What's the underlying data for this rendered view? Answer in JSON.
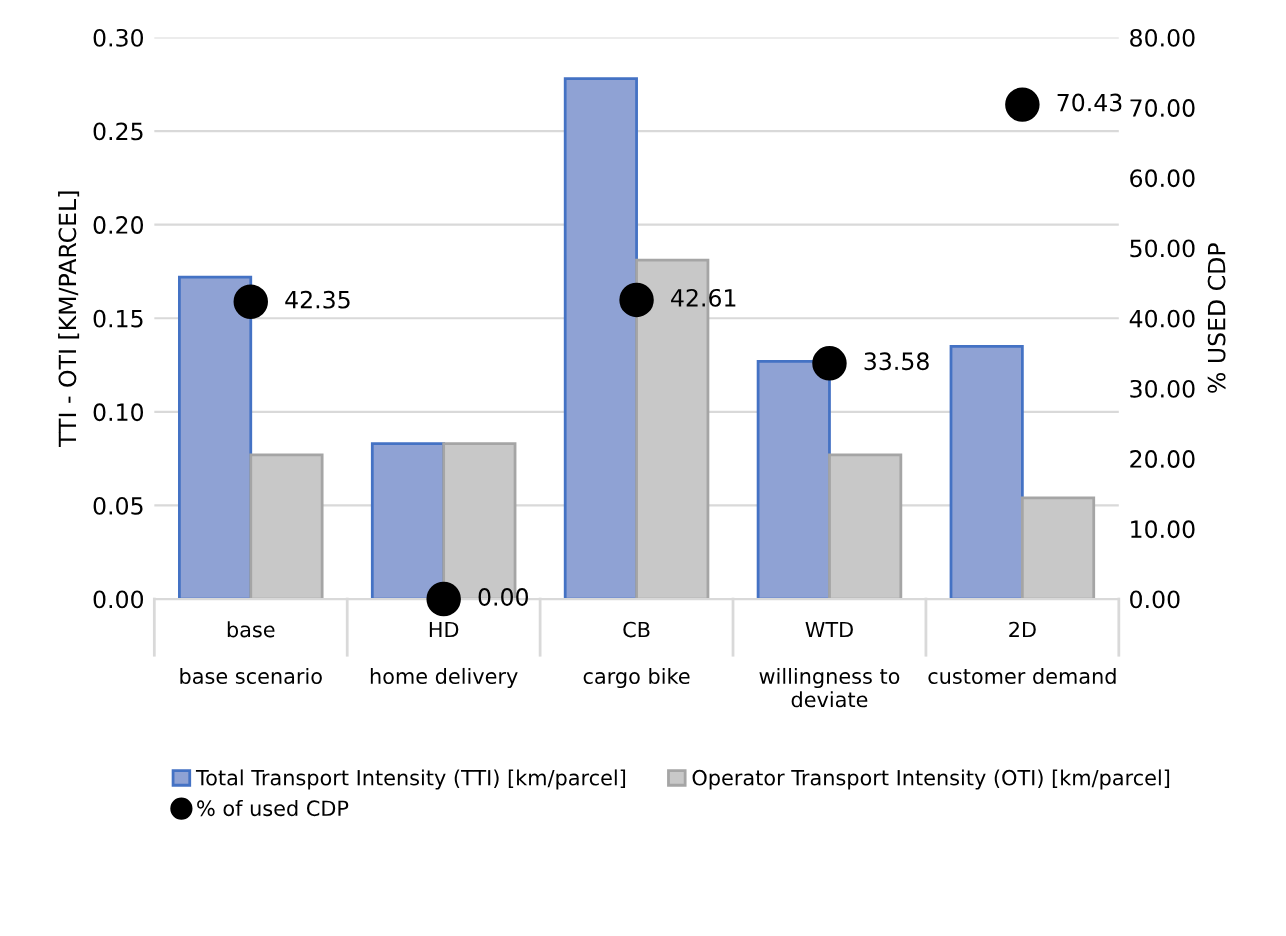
{
  "chart_data": {
    "type": "bar",
    "categories": [
      "base\n\nbase scenario",
      "HD\n\nhome delivery",
      "CB\n\ncargo bike",
      "WTD\n\nwillingness to\ndeviate",
      "2D\n\ncustomer demand"
    ],
    "ylabel": "TTI - OTI [KM/PARCEL]",
    "y2label": "% USED CDP",
    "series": [
      {
        "name": "Total Transport Intensity (TTI) [km/parcel]",
        "color": "#8fa2d4",
        "values": [
          0.172,
          0.083,
          0.278,
          0.127,
          0.135
        ]
      },
      {
        "name": "Operator Transport Intensity (OTI) [km/parcel]",
        "color": "#c8c8c8",
        "values": [
          0.077,
          0.083,
          0.181,
          0.077,
          0.054
        ]
      },
      {
        "name": "% of used CDP",
        "type": "scatter",
        "axis": "y2",
        "color": "#000000",
        "values": [
          42.35,
          0.0,
          42.61,
          33.58,
          70.43
        ],
        "value_labels": [
          "42.35",
          "0.00",
          "42.61",
          "33.58",
          "70.43"
        ]
      }
    ],
    "ylim": [
      0,
      0.3
    ],
    "yticks": [
      {
        "value": 0,
        "label": "0.00"
      },
      {
        "value": 0.05,
        "label": "0.05"
      },
      {
        "value": 0.1,
        "label": "0.10"
      },
      {
        "value": 0.15,
        "label": "0.15"
      },
      {
        "value": 0.2,
        "label": "0.20"
      },
      {
        "value": 0.25,
        "label": "0.25"
      },
      {
        "value": 0.3,
        "label": "0.30"
      }
    ],
    "y2lim": [
      0,
      80
    ],
    "y2ticks": [
      {
        "value": 0,
        "label": "0.00"
      },
      {
        "value": 10,
        "label": "10.00"
      },
      {
        "value": 20,
        "label": "20.00"
      },
      {
        "value": 30,
        "label": "30.00"
      },
      {
        "value": 40,
        "label": "40.00"
      },
      {
        "value": 50,
        "label": "50.00"
      },
      {
        "value": 60,
        "label": "60.00"
      },
      {
        "value": 70,
        "label": "70.00"
      },
      {
        "value": 80,
        "label": "80.00"
      }
    ],
    "grid": "y",
    "legend": "bottom",
    "marker": "circle"
  }
}
